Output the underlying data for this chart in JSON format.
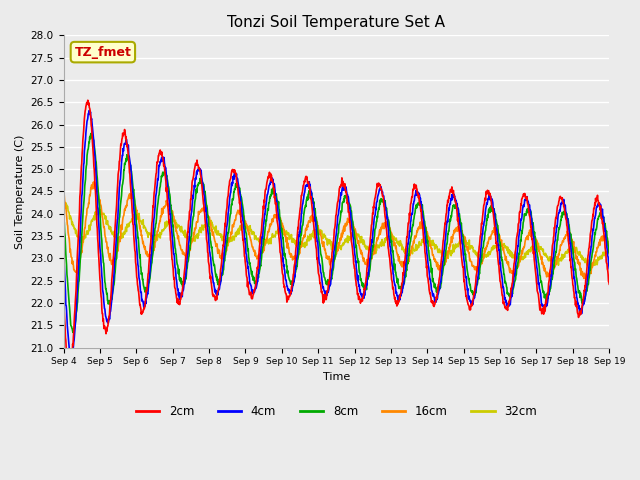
{
  "title": "Tonzi Soil Temperature Set A",
  "xlabel": "Time",
  "ylabel": "Soil Temperature (C)",
  "ylim": [
    21.0,
    28.0
  ],
  "yticks": [
    21.0,
    21.5,
    22.0,
    22.5,
    23.0,
    23.5,
    24.0,
    24.5,
    25.0,
    25.5,
    26.0,
    26.5,
    27.0,
    27.5,
    28.0
  ],
  "xtick_labels": [
    "Sep 4",
    "Sep 5",
    "Sep 6",
    "Sep 7",
    "Sep 8",
    "Sep 9",
    "Sep 10",
    "Sep 11",
    "Sep 12",
    "Sep 13",
    "Sep 14",
    "Sep 15",
    "Sep 16",
    "Sep 17",
    "Sep 18",
    "Sep 19"
  ],
  "legend_labels": [
    "2cm",
    "4cm",
    "8cm",
    "16cm",
    "32cm"
  ],
  "legend_colors": [
    "#ff0000",
    "#0000ff",
    "#00aa00",
    "#ff8800",
    "#cccc00"
  ],
  "annotation_text": "TZ_fmet",
  "annotation_color": "#cc0000",
  "annotation_bg": "#ffffcc",
  "plot_bg": "#ebebeb",
  "n_days": 15,
  "points_per_day": 96
}
